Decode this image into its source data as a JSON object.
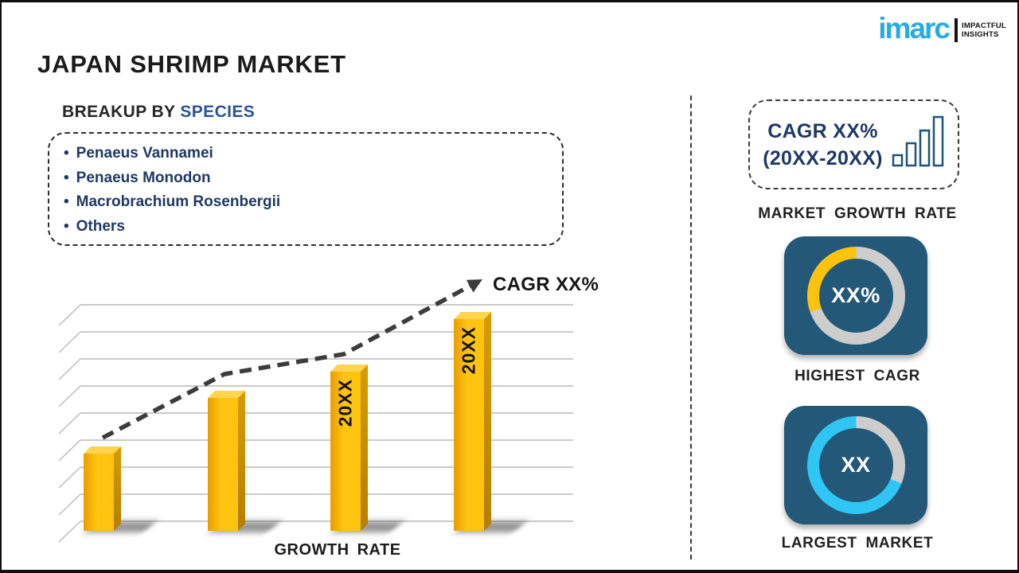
{
  "page": {
    "title": "JAPAN SHRIMP MARKET"
  },
  "logo": {
    "brand": "imarc",
    "tagline_line1": "IMPACTFUL",
    "tagline_line2": "INSIGHTS"
  },
  "breakup": {
    "prefix": "BREAKUP BY",
    "highlight": "SPECIES"
  },
  "species": {
    "bullet": "•",
    "items": [
      "Penaeus Vannamei",
      "Penaeus Monodon",
      "Macrobrachium  Rosenbergii",
      "Others"
    ]
  },
  "chart_data": {
    "type": "bar",
    "title": "",
    "categories": [
      "",
      "",
      "20XX",
      "20XX"
    ],
    "values": [
      29,
      50,
      60,
      80
    ],
    "value_note": "illustrative placeholder bar heights (no numeric axis shown)",
    "xlabel": "GROWTH RATE",
    "ylabel": "",
    "trend_label": "CAGR XX%",
    "trend_style": "rising dashed arrow",
    "grid": true,
    "legend": "none"
  },
  "right_panel": {
    "cagr_box": {
      "line1": "CAGR XX%",
      "line2": "(20XX-20XX)"
    },
    "market_growth_rate_label": "MARKET GROWTH RATE",
    "highest_cagr": {
      "value": "XX%",
      "label": "HIGHEST CAGR"
    },
    "largest_market": {
      "value": "XX",
      "label": "LARGEST MARKET"
    }
  },
  "colors": {
    "accent_navy_text": "#1F3864",
    "accent_blue_highlight": "#2E5496",
    "brand_cyan": "#29ABE2",
    "bar_yellow": "#FFC20E",
    "bar_yellow_light": "#FFD44F",
    "tile_blue": "#235878",
    "ring_gray": "#CDCDCD",
    "ring_cyan": "#2FC5F4",
    "grid_gray": "#B9B9B9",
    "trend_dark": "#3C3C3C",
    "text_black": "#1B1B1B"
  }
}
